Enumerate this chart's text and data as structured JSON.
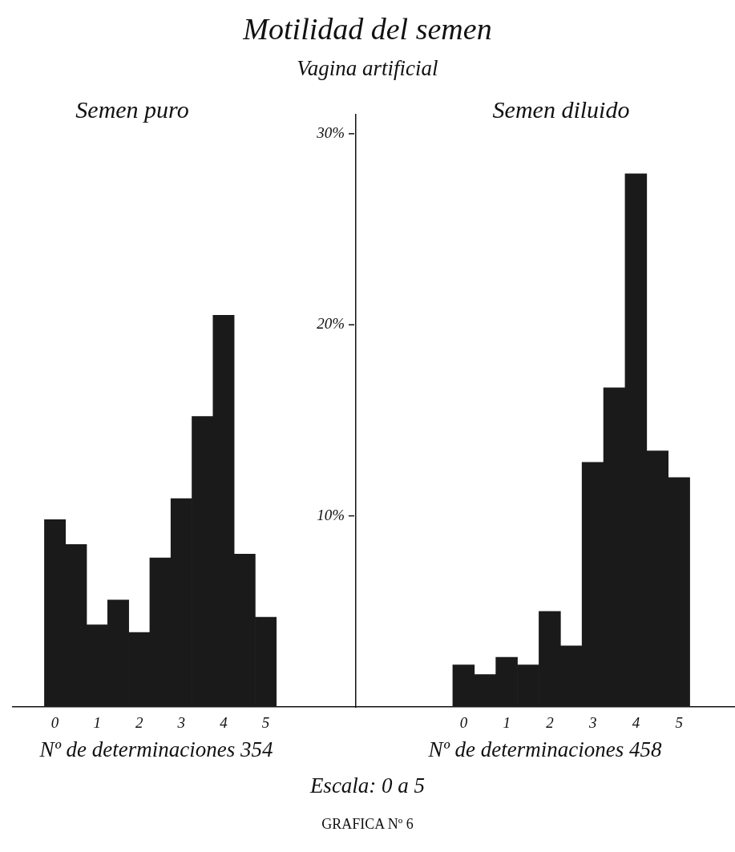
{
  "chart_data": [
    {
      "type": "other",
      "title": "Motilidad del semen",
      "subtitle": "Vagina artificial"
    },
    {
      "type": "histogram",
      "title": "Semen puro",
      "bins": [
        -0.25,
        0.25,
        0.75,
        1.25,
        1.75,
        2.25,
        2.75,
        3.25,
        3.75,
        4.25,
        4.75,
        5.25
      ],
      "values": [
        9.8,
        8.5,
        4.3,
        5.6,
        3.9,
        7.8,
        10.9,
        15.2,
        20.5,
        8.0,
        4.7
      ],
      "color": "#1a1a1a",
      "xlim": [
        -1,
        7.1
      ],
      "xticks": [
        0,
        1,
        2,
        3,
        4,
        5
      ],
      "ylim": [
        0,
        31
      ],
      "yticks": [
        {
          "value": 10,
          "label": "10%"
        },
        {
          "value": 20,
          "label": "20%"
        },
        {
          "value": 30,
          "label": "30%"
        }
      ],
      "annotations": [
        "Nº de determinaciones 354"
      ]
    },
    {
      "type": "histogram",
      "title": "Semen diluido",
      "bins": [
        -0.25,
        0.25,
        0.75,
        1.25,
        1.75,
        2.25,
        2.75,
        3.25,
        3.75,
        4.25,
        4.75,
        5.25
      ],
      "values": [
        2.2,
        1.7,
        2.6,
        2.2,
        5.0,
        3.2,
        12.8,
        16.7,
        27.9,
        13.4,
        12.0
      ],
      "color": "#1a1a1a",
      "xlim": [
        -2.5,
        6.3
      ],
      "xticks": [
        0,
        1,
        2,
        3,
        4,
        5
      ],
      "ylim": [
        0,
        31
      ],
      "tick_labels": "x",
      "annotations": [
        "Nº de determinaciones 458"
      ]
    },
    {
      "type": "other",
      "annotations": [
        "Escala: 0 a 5",
        "GRAFICA Nº 6"
      ]
    }
  ]
}
